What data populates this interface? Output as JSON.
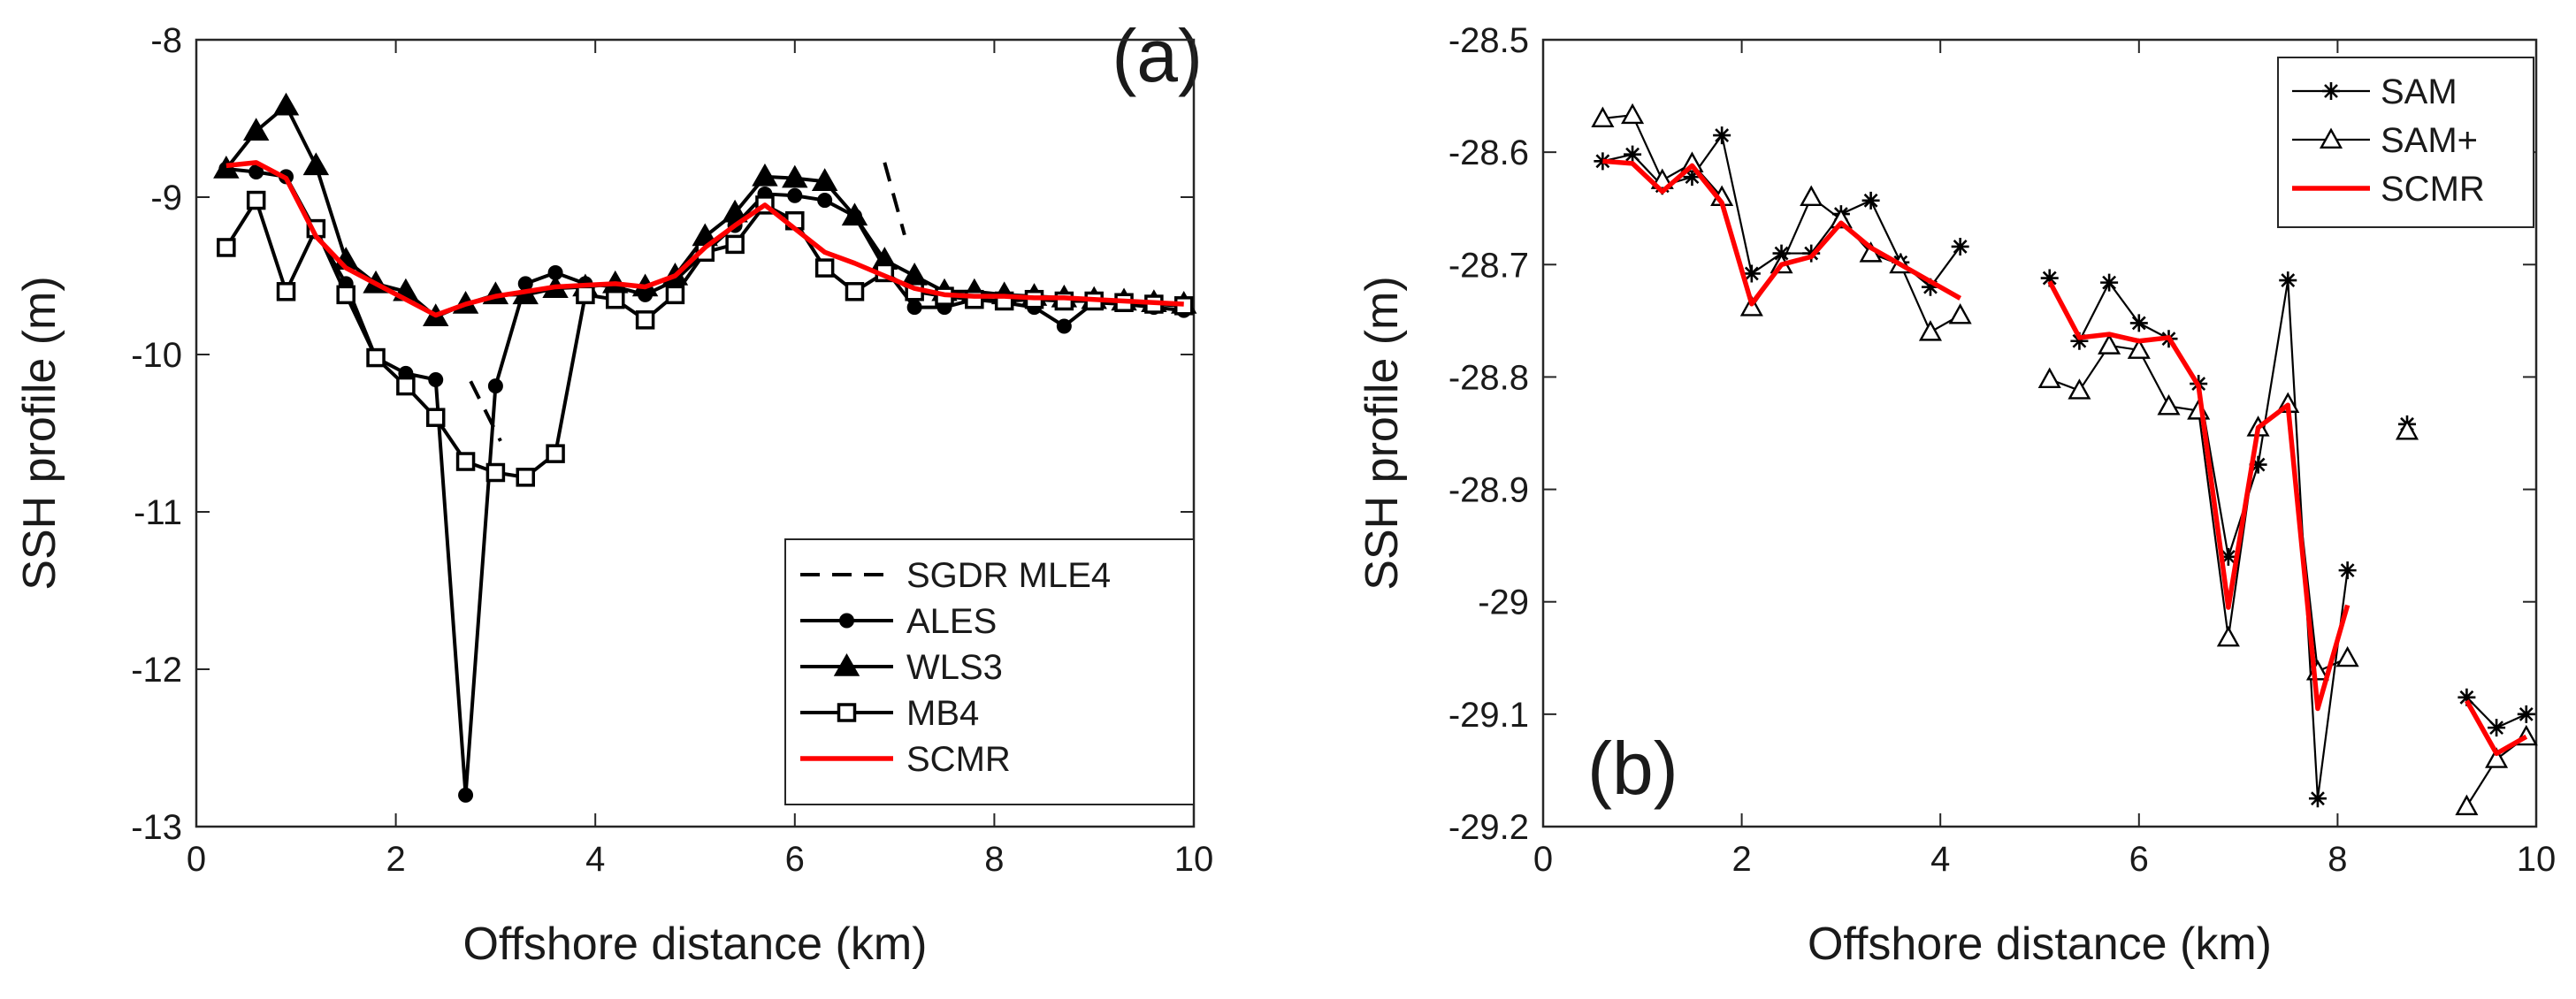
{
  "chart_data": [
    {
      "type": "line",
      "panel_label": "(a)",
      "xlabel": "Offshore distance (km)",
      "ylabel": "SSH profile (m)",
      "xlim": [
        0,
        10
      ],
      "ylim": [
        -13,
        -8
      ],
      "xticks": [
        0,
        2,
        4,
        6,
        8,
        10
      ],
      "yticks": [
        -13,
        -12,
        -11,
        -10,
        -9,
        -8
      ],
      "grid": false,
      "legend_position": "bottom-right",
      "series": [
        {
          "name": "SGDR MLE4",
          "style": "dashed",
          "marker": "none",
          "color": "#000000",
          "segments": [
            {
              "x": [
                2.75,
                3.05
              ],
              "y": [
                -10.17,
                -10.55
              ]
            },
            {
              "x": [
                6.9,
                7.1
              ],
              "y": [
                -8.78,
                -9.24
              ]
            }
          ]
        },
        {
          "name": "ALES",
          "style": "solid",
          "marker": "dot",
          "color": "#000000",
          "x": [
            0.3,
            0.6,
            0.9,
            1.2,
            1.5,
            1.8,
            2.1,
            2.4,
            2.7,
            3.0,
            3.3,
            3.6,
            3.9,
            4.2,
            4.5,
            4.8,
            5.1,
            5.4,
            5.7,
            6.0,
            6.3,
            6.6,
            6.9,
            7.2,
            7.5,
            7.8,
            8.1,
            8.4,
            8.7,
            9.0,
            9.3,
            9.6,
            9.9
          ],
          "y": [
            -8.82,
            -8.84,
            -8.87,
            -9.22,
            -9.55,
            -10.02,
            -10.12,
            -10.16,
            -12.8,
            -10.2,
            -9.55,
            -9.48,
            -9.55,
            -9.57,
            -9.62,
            -9.53,
            -9.35,
            -9.18,
            -8.98,
            -8.99,
            -9.02,
            -9.12,
            -9.45,
            -9.7,
            -9.7,
            -9.65,
            -9.67,
            -9.7,
            -9.82,
            -9.67,
            -9.68,
            -9.7,
            -9.72
          ]
        },
        {
          "name": "WLS3",
          "style": "solid",
          "marker": "triangle",
          "color": "#000000",
          "x": [
            0.3,
            0.6,
            0.9,
            1.2,
            1.5,
            1.8,
            2.1,
            2.4,
            2.7,
            3.0,
            3.3,
            3.6,
            3.9,
            4.2,
            4.5,
            4.8,
            5.1,
            5.4,
            5.7,
            6.0,
            6.3,
            6.6,
            6.9,
            7.2,
            7.5,
            7.8,
            8.1,
            8.4,
            8.7,
            9.0,
            9.3,
            9.6,
            9.9
          ],
          "y": [
            -8.82,
            -8.58,
            -8.42,
            -8.8,
            -9.4,
            -9.55,
            -9.6,
            -9.76,
            -9.68,
            -9.62,
            -9.62,
            -9.58,
            -9.57,
            -9.55,
            -9.57,
            -9.5,
            -9.25,
            -9.1,
            -8.87,
            -8.88,
            -8.9,
            -9.12,
            -9.4,
            -9.5,
            -9.6,
            -9.6,
            -9.62,
            -9.63,
            -9.64,
            -9.65,
            -9.66,
            -9.67,
            -9.68
          ]
        },
        {
          "name": "MB4",
          "style": "solid",
          "marker": "square",
          "color": "#000000",
          "x": [
            0.3,
            0.6,
            0.9,
            1.2,
            1.5,
            1.8,
            2.1,
            2.4,
            2.7,
            3.0,
            3.3,
            3.6,
            3.9,
            4.2,
            4.5,
            4.8,
            5.1,
            5.4,
            5.7,
            6.0,
            6.3,
            6.6,
            6.9,
            7.2,
            7.5,
            7.8,
            8.1,
            8.4,
            8.7,
            9.0,
            9.3,
            9.6,
            9.9
          ],
          "y": [
            -9.32,
            -9.02,
            -9.6,
            -9.2,
            -9.62,
            -10.02,
            -10.2,
            -10.4,
            -10.68,
            -10.75,
            -10.78,
            -10.63,
            -9.62,
            -9.65,
            -9.78,
            -9.62,
            -9.35,
            -9.3,
            -9.05,
            -9.15,
            -9.45,
            -9.6,
            -9.48,
            -9.6,
            -9.63,
            -9.65,
            -9.66,
            -9.65,
            -9.66,
            -9.66,
            -9.67,
            -9.68,
            -9.69
          ]
        },
        {
          "name": "SCMR",
          "style": "solid",
          "marker": "none",
          "color": "#ff0000",
          "x": [
            0.3,
            0.6,
            0.9,
            1.2,
            1.5,
            1.8,
            2.1,
            2.4,
            2.7,
            3.0,
            3.3,
            3.6,
            3.9,
            4.2,
            4.5,
            4.8,
            5.1,
            5.4,
            5.7,
            6.0,
            6.3,
            6.6,
            6.9,
            7.2,
            7.5,
            7.8,
            8.1,
            8.4,
            8.7,
            9.0,
            9.3,
            9.6,
            9.9
          ],
          "y": [
            -8.8,
            -8.78,
            -8.88,
            -9.25,
            -9.45,
            -9.55,
            -9.65,
            -9.75,
            -9.68,
            -9.63,
            -9.6,
            -9.57,
            -9.56,
            -9.55,
            -9.57,
            -9.5,
            -9.32,
            -9.18,
            -9.05,
            -9.2,
            -9.35,
            -9.42,
            -9.5,
            -9.58,
            -9.62,
            -9.63,
            -9.63,
            -9.64,
            -9.64,
            -9.65,
            -9.66,
            -9.67,
            -9.68
          ]
        }
      ]
    },
    {
      "type": "line",
      "panel_label": "(b)",
      "xlabel": "Offshore distance (km)",
      "ylabel": "SSH profile (m)",
      "xlim": [
        0,
        10
      ],
      "ylim": [
        -29.2,
        -28.5
      ],
      "xticks": [
        0,
        2,
        4,
        6,
        8,
        10
      ],
      "yticks": [
        -29.2,
        -29.1,
        -29,
        -28.9,
        -28.8,
        -28.7,
        -28.6,
        -28.5
      ],
      "ytick_labels": [
        "-29.2",
        "-29.1",
        "-29",
        "-28.9",
        "-28.8",
        "-28.7",
        "-28.6",
        "-28.5"
      ],
      "grid": false,
      "legend_position": "top-right",
      "series": [
        {
          "name": "SAM",
          "style": "solid",
          "thin": true,
          "marker": "star",
          "color": "#000000",
          "segments": [
            {
              "x": [
                0.6,
                0.9,
                1.2,
                1.5,
                1.8,
                2.1,
                2.4,
                2.7,
                3.0,
                3.3,
                3.6,
                3.9,
                4.2
              ],
              "y": [
                -28.608,
                -28.602,
                -28.63,
                -28.622,
                -28.585,
                -28.708,
                -28.69,
                -28.69,
                -28.655,
                -28.643,
                -28.698,
                -28.72,
                -28.684
              ]
            },
            {
              "x": [
                5.1,
                5.4,
                5.7,
                6.0,
                6.3,
                6.6,
                6.9,
                7.2,
                7.5,
                7.8,
                8.1
              ],
              "y": [
                -28.712,
                -28.768,
                -28.716,
                -28.752,
                -28.766,
                -28.806,
                -28.96,
                -28.878,
                -28.714,
                -29.175,
                -28.972
              ]
            },
            {
              "x": [
                8.7
              ],
              "y": [
                -28.842
              ]
            },
            {
              "x": [
                9.3,
                9.6,
                9.9
              ],
              "y": [
                -29.085,
                -29.112,
                -29.1
              ]
            }
          ]
        },
        {
          "name": "SAM+",
          "style": "solid",
          "thin": true,
          "marker": "triangle-open",
          "color": "#000000",
          "segments": [
            {
              "x": [
                0.6,
                0.9,
                1.2,
                1.5,
                1.8,
                2.1,
                2.4,
                2.7,
                3.0,
                3.3,
                3.6,
                3.9,
                4.2
              ],
              "y": [
                -28.57,
                -28.567,
                -28.625,
                -28.61,
                -28.64,
                -28.738,
                -28.7,
                -28.64,
                -28.66,
                -28.69,
                -28.7,
                -28.76,
                -28.745
              ]
            },
            {
              "x": [
                5.1,
                5.4,
                5.7,
                6.0,
                6.3,
                6.6,
                6.9,
                7.2,
                7.5,
                7.8,
                8.1
              ],
              "y": [
                -28.802,
                -28.812,
                -28.772,
                -28.776,
                -28.826,
                -28.83,
                -29.032,
                -28.845,
                -28.824,
                -29.062,
                -29.05
              ]
            },
            {
              "x": [
                8.7
              ],
              "y": [
                -28.848
              ]
            },
            {
              "x": [
                9.3,
                9.6,
                9.9
              ],
              "y": [
                -29.182,
                -29.14,
                -29.12
              ]
            }
          ]
        },
        {
          "name": "SCMR",
          "style": "solid",
          "marker": "none",
          "color": "#ff0000",
          "segments": [
            {
              "x": [
                0.6,
                0.9,
                1.2,
                1.5,
                1.8,
                2.1,
                2.4,
                2.7,
                3.0,
                3.3,
                3.6,
                3.9,
                4.2
              ],
              "y": [
                -28.608,
                -28.61,
                -28.635,
                -28.612,
                -28.645,
                -28.735,
                -28.7,
                -28.693,
                -28.663,
                -28.685,
                -28.7,
                -28.715,
                -28.73
              ]
            },
            {
              "x": [
                5.1,
                5.4,
                5.7,
                6.0,
                6.3,
                6.6,
                6.9,
                7.2,
                7.5,
                7.8,
                8.1
              ],
              "y": [
                -28.715,
                -28.765,
                -28.762,
                -28.768,
                -28.765,
                -28.808,
                -29.005,
                -28.845,
                -28.825,
                -29.095,
                -29.003
              ]
            },
            {
              "x": [
                9.3,
                9.6,
                9.9
              ],
              "y": [
                -29.088,
                -29.135,
                -29.12
              ]
            }
          ]
        }
      ]
    }
  ]
}
